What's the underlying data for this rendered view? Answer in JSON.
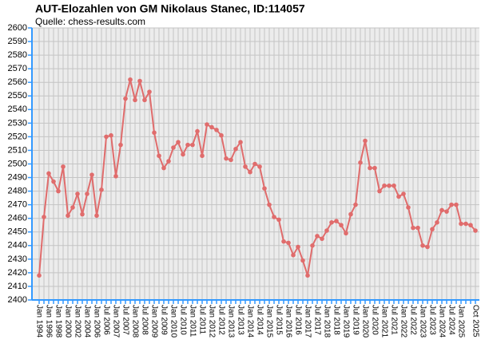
{
  "chart_data": {
    "type": "line",
    "title": "AUT-Elozahlen von GM Nikolaus Stanec, ID:114057",
    "subtitle": "Quelle: chess-results.com",
    "categories": [
      "Jan 1994",
      null,
      "Jan 1996",
      null,
      "Jan 1998",
      null,
      "Jan 2000",
      null,
      "Jan 2002",
      null,
      "Jan 2004",
      null,
      "Jan 2006",
      null,
      "Jul 2006",
      null,
      "Jan 2007",
      null,
      "Jul 2007",
      null,
      "Jan 2008",
      null,
      "Jul 2008",
      null,
      "Jan 2009",
      null,
      "Jul 2009",
      null,
      "Jan 2010",
      null,
      "Jul 2010",
      null,
      "Jan 2011",
      null,
      "Jul 2011",
      null,
      "Jan 2012",
      null,
      "Jul 2012",
      null,
      "Jan 2013",
      null,
      "Jul 2013",
      null,
      "Jan 2014",
      null,
      "Jul 2014",
      null,
      "Jan 2015",
      null,
      "Jul 2015",
      null,
      "Jan 2016",
      null,
      "Jul 2016",
      null,
      "Jan 2017",
      null,
      "Jul 2017",
      null,
      "Jan 2018",
      null,
      "Jul 2018",
      null,
      "Jan 2019",
      null,
      "Jul 2019",
      null,
      "Jan 2020",
      null,
      "Jul 2020",
      null,
      "Jan 2021",
      null,
      "Jul 2021",
      null,
      "Jan 2022",
      null,
      "Jul 2022",
      null,
      "Jan 2023",
      null,
      "Jul 2023",
      null,
      "Jan 2024",
      null,
      "Jul 2024",
      null,
      "Jan 2025",
      null,
      null,
      "Oct 2025"
    ],
    "series": [
      {
        "name": "Elo",
        "color": "#e06c6c",
        "values": [
          2418,
          2461,
          2493,
          2487,
          2480,
          2498,
          2462,
          2468,
          2478,
          2463,
          2478,
          2492,
          2462,
          2481,
          2520,
          2521,
          2491,
          2514,
          2548,
          2562,
          2547,
          2561,
          2547,
          2553,
          2523,
          2506,
          2497,
          2502,
          2512,
          2516,
          2507,
          2514,
          2514,
          2524,
          2506,
          2529,
          2527,
          2525,
          2521,
          2504,
          2503,
          2511,
          2516,
          2498,
          2494,
          2500,
          2498,
          2482,
          2470,
          2461,
          2459,
          2443,
          2442,
          2433,
          2439,
          2429,
          2418,
          2440,
          2447,
          2445,
          2451,
          2457,
          2458,
          2455,
          2449,
          2463,
          2470,
          2501,
          2517,
          2497,
          2497,
          2480,
          2484,
          2484,
          2484,
          2476,
          2478,
          2468,
          2453,
          2453,
          2440,
          2439,
          2452,
          2457,
          2466,
          2465,
          2470,
          2470,
          2456,
          2456,
          2455,
          2451
        ]
      }
    ],
    "ylim": [
      2400,
      2600
    ],
    "yticks": [
      2400,
      2410,
      2420,
      2430,
      2440,
      2450,
      2460,
      2470,
      2480,
      2490,
      2500,
      2510,
      2520,
      2530,
      2540,
      2550,
      2560,
      2570,
      2580,
      2590,
      2600
    ],
    "grid": true
  }
}
